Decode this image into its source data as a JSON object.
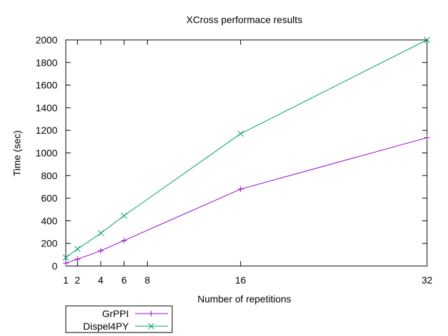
{
  "chart_data": {
    "type": "line",
    "title": "XCross performace results",
    "xlabel": "Number of repetitions",
    "ylabel": "Time (sec)",
    "xlim": [
      1,
      32
    ],
    "ylim": [
      0,
      2000
    ],
    "x_ticks": [
      1,
      2,
      4,
      6,
      8,
      16,
      32
    ],
    "y_ticks": [
      0,
      200,
      400,
      600,
      800,
      1000,
      1200,
      1400,
      1600,
      1800,
      2000
    ],
    "grid": false,
    "legend_position": "bottom-left, outside plot",
    "series": [
      {
        "name": "GrPPI",
        "color": "#9400d3",
        "marker": "plus",
        "x": [
          1,
          2,
          4,
          6,
          16,
          32
        ],
        "values": [
          25,
          60,
          135,
          225,
          680,
          1135
        ]
      },
      {
        "name": "Dispel4PY",
        "color": "#009e73",
        "marker": "cross",
        "x": [
          1,
          2,
          4,
          6,
          16,
          32
        ],
        "values": [
          75,
          150,
          290,
          445,
          1170,
          2000
        ]
      }
    ]
  }
}
